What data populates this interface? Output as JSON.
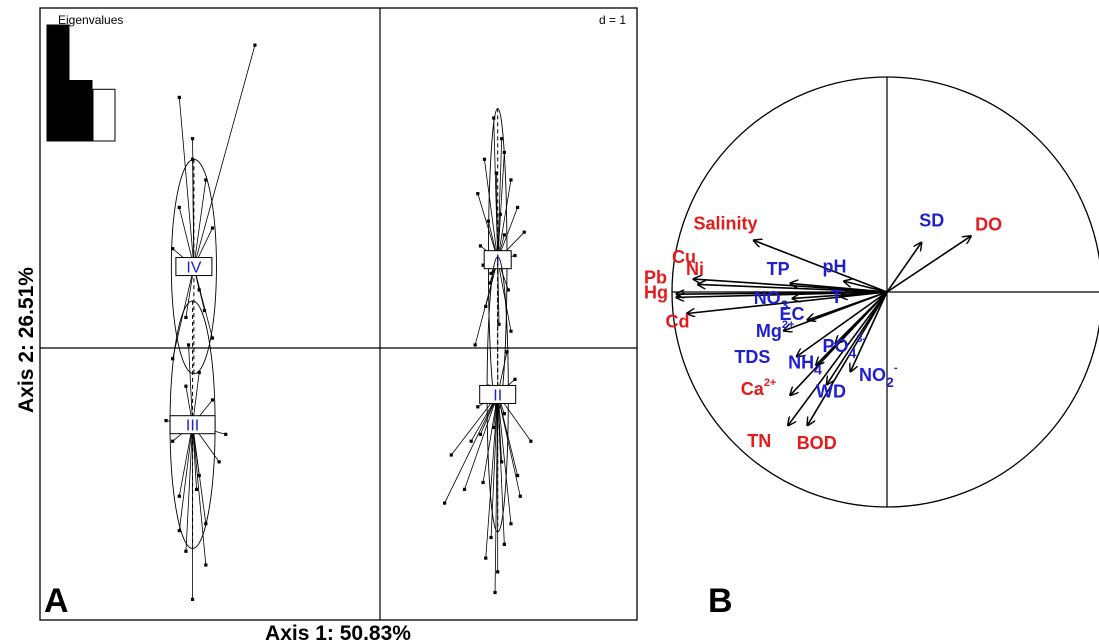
{
  "chart_data": [
    {
      "type": "scatter",
      "subtype": "between-class-pca-factor-map",
      "panel_label": "A",
      "xlabel": "Axis 1: 50.83%",
      "ylabel": "Axis 2: 26.51%",
      "scale_label": "d = 1",
      "xlim": [
        -2.6,
        1.9
      ],
      "ylim": [
        -1.9,
        2.55
      ],
      "grid": false,
      "eigenvalues": {
        "label": "Eigenvalues",
        "values": [
          50.83,
          26.51,
          22.66
        ],
        "fills": [
          "#000000",
          "#000000",
          "#ffffff"
        ]
      },
      "groups": [
        {
          "name": "I",
          "center": [
            0.85,
            0.72
          ],
          "ellipse": [
            0.07,
            1.1
          ],
          "points": [
            [
              0.82,
              1.75
            ],
            [
              0.88,
              1.6
            ],
            [
              0.75,
              1.45
            ],
            [
              0.95,
              1.3
            ],
            [
              0.7,
              1.2
            ],
            [
              1.0,
              1.1
            ],
            [
              0.78,
              1.0
            ],
            [
              0.9,
              0.9
            ],
            [
              0.72,
              0.82
            ],
            [
              0.98,
              0.75
            ],
            [
              0.8,
              0.62
            ],
            [
              0.93,
              0.5
            ],
            [
              0.76,
              0.38
            ],
            [
              0.86,
              0.25
            ],
            [
              0.68,
              0.1
            ],
            [
              1.05,
              0.92
            ],
            [
              0.84,
              1.35
            ],
            [
              0.9,
              1.5
            ],
            [
              0.79,
              0.55
            ],
            [
              0.95,
              0.2
            ],
            [
              0.74,
              0.68
            ],
            [
              0.87,
              1.05
            ]
          ]
        },
        {
          "name": "II",
          "center": [
            0.85,
            -0.26
          ],
          "ellipse": [
            0.08,
            1.0
          ],
          "points": [
            [
              0.6,
              -0.95
            ],
            [
              0.45,
              -1.05
            ],
            [
              0.5,
              -0.7
            ],
            [
              0.72,
              -0.55
            ],
            [
              0.9,
              -0.4
            ],
            [
              1.1,
              -0.6
            ],
            [
              0.8,
              -1.3
            ],
            [
              0.85,
              -1.55
            ],
            [
              0.95,
              -1.2
            ],
            [
              1.0,
              -0.85
            ],
            [
              0.78,
              -0.2
            ],
            [
              0.92,
              0.05
            ],
            [
              0.7,
              -0.35
            ],
            [
              0.88,
              -0.75
            ],
            [
              0.83,
              -1.7
            ],
            [
              0.76,
              -1.45
            ],
            [
              0.98,
              -0.15
            ],
            [
              0.65,
              -0.6
            ],
            [
              1.02,
              -1.0
            ],
            [
              0.82,
              -0.5
            ],
            [
              0.9,
              -1.35
            ],
            [
              0.74,
              -0.9
            ]
          ]
        },
        {
          "name": "III",
          "center": [
            -1.45,
            -0.48
          ],
          "ellipse": [
            0.17,
            0.9
          ],
          "points": [
            [
              -1.45,
              -1.75
            ],
            [
              -1.5,
              -1.4
            ],
            [
              -1.35,
              -1.2
            ],
            [
              -1.55,
              -1.0
            ],
            [
              -1.4,
              -0.85
            ],
            [
              -1.25,
              -0.75
            ],
            [
              -1.6,
              -0.6
            ],
            [
              -1.3,
              -0.3
            ],
            [
              -1.5,
              -0.2
            ],
            [
              -1.65,
              -0.45
            ],
            [
              -1.2,
              -0.55
            ],
            [
              -1.35,
              -1.5
            ],
            [
              -1.55,
              -1.25
            ],
            [
              -1.4,
              -0.1
            ],
            [
              -1.48,
              0.1
            ],
            [
              -1.42,
              -0.95
            ]
          ]
        },
        {
          "name": "IV",
          "center": [
            -1.44,
            0.67
          ],
          "ellipse": [
            0.17,
            0.78
          ],
          "points": [
            [
              -0.98,
              2.28
            ],
            [
              -1.55,
              1.9
            ],
            [
              -1.45,
              1.6
            ],
            [
              -1.35,
              1.3
            ],
            [
              -1.55,
              1.1
            ],
            [
              -1.3,
              0.95
            ],
            [
              -1.6,
              0.8
            ],
            [
              -1.4,
              0.5
            ],
            [
              -1.5,
              0.3
            ],
            [
              -1.3,
              0.15
            ],
            [
              -1.6,
              0.0
            ],
            [
              -1.45,
              1.45
            ],
            [
              -1.36,
              0.35
            ],
            [
              -1.52,
              0.65
            ]
          ]
        }
      ]
    },
    {
      "type": "scatter",
      "subtype": "correlation-circle",
      "panel_label": "B",
      "xlim": [
        -1,
        1
      ],
      "ylim": [
        -1,
        1
      ],
      "grid": false,
      "arrows": [
        {
          "id": "salinity",
          "x": -0.62,
          "y": 0.24
        },
        {
          "id": "cu",
          "x": -0.9,
          "y": 0.06
        },
        {
          "id": "ni",
          "x": -0.88,
          "y": 0.035
        },
        {
          "id": "pb",
          "x": -0.98,
          "y": -0.01
        },
        {
          "id": "hg",
          "x": -0.98,
          "y": -0.025
        },
        {
          "id": "cd",
          "x": -0.93,
          "y": -0.1
        },
        {
          "id": "tp",
          "x": -0.45,
          "y": 0.04
        },
        {
          "id": "ph",
          "x": -0.2,
          "y": 0.05
        },
        {
          "id": "t",
          "x": -0.22,
          "y": -0.02
        },
        {
          "id": "no3",
          "x": -0.44,
          "y": -0.03
        },
        {
          "id": "ec",
          "x": -0.37,
          "y": -0.13
        },
        {
          "id": "mg",
          "x": -0.48,
          "y": -0.18
        },
        {
          "id": "tds",
          "x": -0.42,
          "y": -0.3
        },
        {
          "id": "nh4",
          "x": -0.33,
          "y": -0.34
        },
        {
          "id": "po4",
          "x": -0.24,
          "y": -0.24
        },
        {
          "id": "no2",
          "x": -0.17,
          "y": -0.37
        },
        {
          "id": "wd",
          "x": -0.28,
          "y": -0.43
        },
        {
          "id": "ca",
          "x": -0.45,
          "y": -0.48
        },
        {
          "id": "tn",
          "x": -0.46,
          "y": -0.62
        },
        {
          "id": "bod",
          "x": -0.37,
          "y": -0.62
        },
        {
          "id": "sd",
          "x": 0.16,
          "y": 0.23
        },
        {
          "id": "do",
          "x": 0.39,
          "y": 0.26
        }
      ],
      "labels": [
        {
          "id": "salinity",
          "text": "Salinity",
          "color": "#e41a1c",
          "x": -0.9,
          "y": 0.29
        },
        {
          "id": "cu",
          "text": "Cu",
          "color": "#e41a1c",
          "x": -1.0,
          "y": 0.135
        },
        {
          "id": "ni",
          "text": "Ni",
          "color": "#e41a1c",
          "x": -0.935,
          "y": 0.08
        },
        {
          "id": "pb",
          "text": "Pb",
          "color": "#e41a1c",
          "x": -1.13,
          "y": 0.04
        },
        {
          "id": "hg",
          "text": "Hg",
          "color": "#e41a1c",
          "x": -1.13,
          "y": -0.03
        },
        {
          "id": "cd",
          "text": "Cd",
          "color": "#e41a1c",
          "x": -1.03,
          "y": -0.165
        },
        {
          "id": "tp",
          "text": "TP",
          "color": "#1f1fd0",
          "x": -0.56,
          "y": 0.08
        },
        {
          "id": "ph",
          "text": "pH",
          "color": "#1f1fd0",
          "x": -0.3,
          "y": 0.09
        },
        {
          "id": "t",
          "text": "T",
          "color": "#1f1fd0",
          "x": -0.26,
          "y": -0.05
        },
        {
          "id": "no3",
          "text": "NO",
          "sub": "3",
          "color": "#1f1fd0",
          "x": -0.62,
          "y": -0.055
        },
        {
          "id": "ec",
          "text": "EC",
          "color": "#1f1fd0",
          "x": -0.5,
          "y": -0.13
        },
        {
          "id": "mg",
          "text": "Mg",
          "sup": "2+",
          "color": "#1f1fd0",
          "x": -0.61,
          "y": -0.21
        },
        {
          "id": "tds",
          "text": "TDS",
          "color": "#1f1fd0",
          "x": -0.71,
          "y": -0.33
        },
        {
          "id": "nh4",
          "text": "NH",
          "sub": "4",
          "color": "#1f1fd0",
          "x": -0.46,
          "y": -0.355
        },
        {
          "id": "po4",
          "text": "PO",
          "sub": "4",
          "sup": "3-",
          "color": "#1f1fd0",
          "x": -0.3,
          "y": -0.28
        },
        {
          "id": "no2",
          "text": "NO",
          "sub": "2",
          "sup": "-",
          "color": "#1f1fd0",
          "x": -0.13,
          "y": -0.415
        },
        {
          "id": "wd",
          "text": "WD",
          "color": "#1f1fd0",
          "x": -0.33,
          "y": -0.49
        },
        {
          "id": "ca",
          "text": "Ca",
          "sup": "2+",
          "color": "#e41a1c",
          "x": -0.68,
          "y": -0.48
        },
        {
          "id": "tn",
          "text": "TN",
          "color": "#e41a1c",
          "x": -0.65,
          "y": -0.72
        },
        {
          "id": "bod",
          "text": "BOD",
          "color": "#e41a1c",
          "x": -0.42,
          "y": -0.73
        },
        {
          "id": "sd",
          "text": "SD",
          "color": "#1f1fd0",
          "x": 0.15,
          "y": 0.305
        },
        {
          "id": "do",
          "text": "DO",
          "color": "#e41a1c",
          "x": 0.41,
          "y": 0.285
        }
      ]
    }
  ]
}
